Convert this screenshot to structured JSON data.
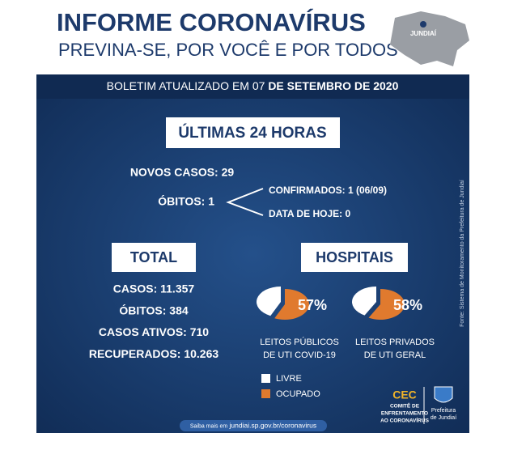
{
  "header": {
    "title": "INFORME CORONAVÍRUS",
    "subtitle": "PREVINA-SE, POR VOCÊ E POR TODOS",
    "map_label": "JUNDIAÍ"
  },
  "bulletin": {
    "prefix": "BOLETIM  ATUALIZADO EM 07",
    "date": "DE SETEMBRO DE 2020"
  },
  "last24": {
    "title": "ÚLTIMAS 24 HORAS",
    "new_cases": "NOVOS CASOS: 29",
    "deaths": "ÓBITOS: 1",
    "confirmed": "CONFIRMADOS: 1 (06/09)",
    "today": "DATA DE HOJE: 0"
  },
  "total": {
    "title": "TOTAL",
    "lines": [
      "CASOS: 11.357",
      "ÓBITOS: 384",
      "CASOS ATIVOS: 710",
      "RECUPERADOS: 10.263"
    ]
  },
  "hospitals": {
    "title": "HOSPITAIS",
    "values": [
      57,
      58
    ],
    "value_labels": [
      "57%",
      "58%"
    ],
    "captions": [
      [
        "LEITOS PÚBLICOS",
        "DE UTI COVID-19"
      ],
      [
        "LEITOS PRIVADOS",
        "DE UTI GERAL"
      ]
    ],
    "legend": [
      {
        "name": "LIVRE",
        "color": "#ffffff"
      },
      {
        "name": "OCUPADO",
        "color": "#e07a2e"
      }
    ]
  },
  "source": "Fonte: Sistema de Monitoramento da Prefeitura de Jundiaí",
  "logos": {
    "cec": "CEC",
    "cec_lines": [
      "COMITÊ DE",
      "ENFRENTAMENTO",
      "AO CORONAVÍRUS"
    ],
    "city": [
      "Prefeitura",
      "de Jundiaí"
    ]
  },
  "footer": {
    "prefix": "Saiba mais em",
    "url": "jundiai.sp.gov.br/coronavirus"
  }
}
